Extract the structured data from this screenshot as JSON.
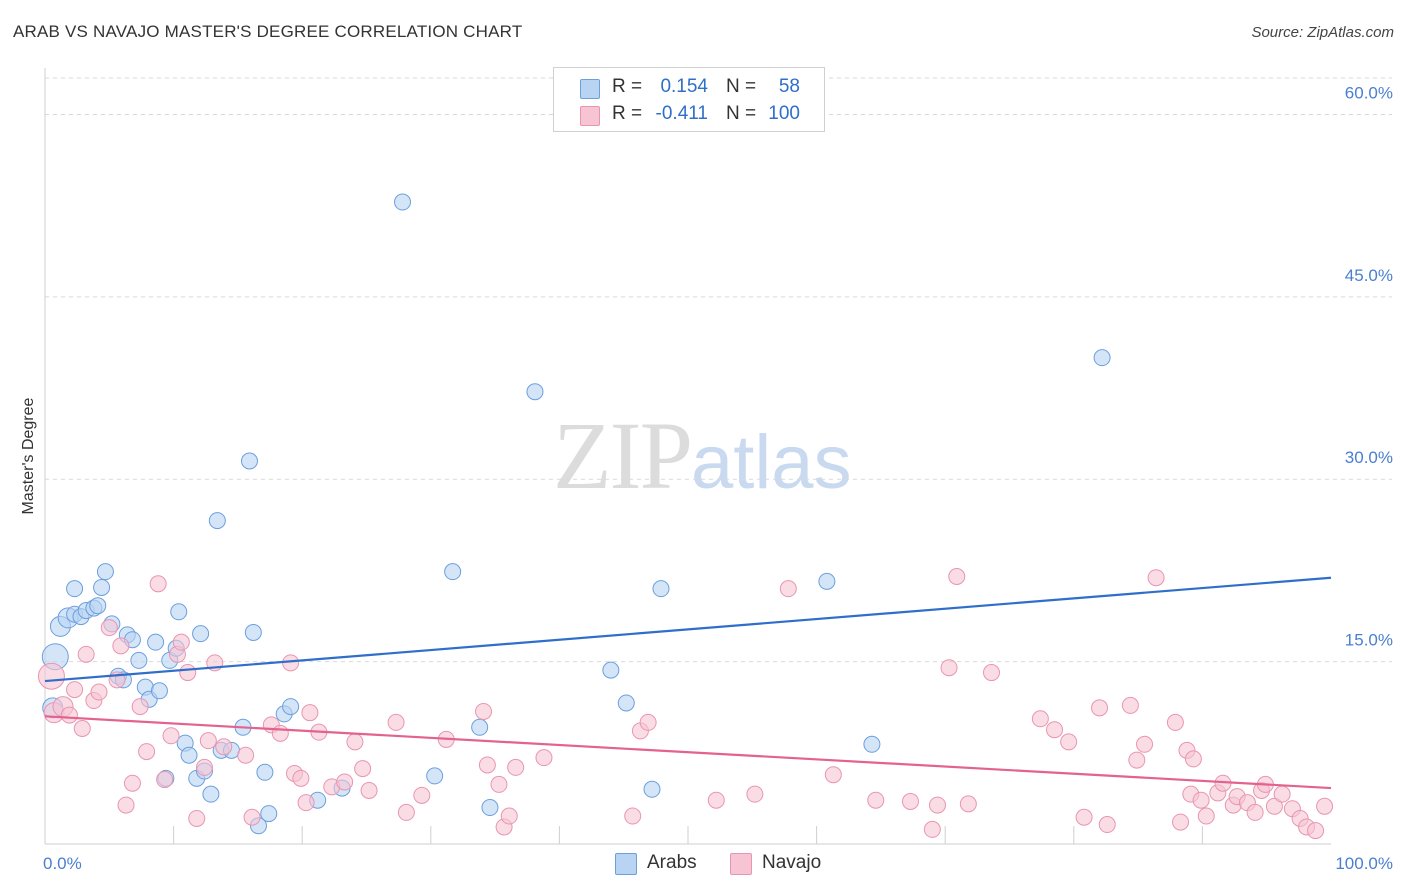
{
  "header": {
    "title": "ARAB VS NAVAJO MASTER'S DEGREE CORRELATION CHART",
    "source": "Source: ZipAtlas.com"
  },
  "watermark": {
    "zip": "ZIP",
    "atlas": "atlas"
  },
  "legend": {
    "arabs": {
      "r_label": "R =",
      "r_value": "0.154",
      "n_label": "N =",
      "n_value": "58"
    },
    "navajo": {
      "r_label": "R =",
      "r_value": "-0.411",
      "n_label": "N =",
      "n_value": "100"
    }
  },
  "bottom_legend": {
    "arabs": "Arabs",
    "navajo": "Navajo"
  },
  "colors": {
    "arabs_fill": "#b9d3f3",
    "arabs_stroke": "#6c9fde",
    "arabs_line": "#2f6fca",
    "navajo_fill": "#f7c4d4",
    "navajo_stroke": "#e995b2",
    "navajo_line": "#e3628e",
    "grid": "#d9d9d9",
    "tick_text": "#4a7fd0"
  },
  "chart_data": {
    "type": "scatter",
    "title": "ARAB VS NAVAJO MASTER'S DEGREE CORRELATION CHART",
    "xlabel": "",
    "ylabel": "Master's Degree",
    "xlim": [
      0,
      100
    ],
    "ylim": [
      0,
      63
    ],
    "x_tick_labels": [
      {
        "value": 0,
        "label": "0.0%"
      },
      {
        "value": 100,
        "label": "100.0%"
      }
    ],
    "y_ticks": [
      {
        "value": 15,
        "label": "15.0%"
      },
      {
        "value": 30,
        "label": "30.0%"
      },
      {
        "value": 45,
        "label": "45.0%"
      },
      {
        "value": 60,
        "label": "60.0%"
      }
    ],
    "grid": true,
    "series": [
      {
        "name": "Arabs",
        "r": 0.154,
        "n": 58,
        "trend": {
          "x": [
            0,
            100
          ],
          "y": [
            13.4,
            21.9
          ]
        },
        "points": [
          {
            "x": 0.8,
            "y": 15.4,
            "s": 3
          },
          {
            "x": 1.2,
            "y": 17.9,
            "s": 2
          },
          {
            "x": 1.8,
            "y": 18.6,
            "s": 2
          },
          {
            "x": 0.6,
            "y": 11.2,
            "s": 2
          },
          {
            "x": 2.3,
            "y": 18.9,
            "s": 1
          },
          {
            "x": 2.3,
            "y": 21.0,
            "s": 1
          },
          {
            "x": 2.8,
            "y": 18.7,
            "s": 1
          },
          {
            "x": 3.2,
            "y": 19.2,
            "s": 1
          },
          {
            "x": 3.8,
            "y": 19.4,
            "s": 1
          },
          {
            "x": 4.1,
            "y": 19.6,
            "s": 1
          },
          {
            "x": 4.4,
            "y": 21.1,
            "s": 1
          },
          {
            "x": 4.7,
            "y": 22.4,
            "s": 1
          },
          {
            "x": 5.2,
            "y": 18.1,
            "s": 1
          },
          {
            "x": 5.7,
            "y": 13.8,
            "s": 1
          },
          {
            "x": 6.1,
            "y": 13.5,
            "s": 1
          },
          {
            "x": 6.4,
            "y": 17.2,
            "s": 1
          },
          {
            "x": 6.8,
            "y": 16.8,
            "s": 1
          },
          {
            "x": 7.3,
            "y": 15.1,
            "s": 1
          },
          {
            "x": 7.8,
            "y": 12.9,
            "s": 1
          },
          {
            "x": 8.1,
            "y": 11.9,
            "s": 1
          },
          {
            "x": 8.6,
            "y": 16.6,
            "s": 1
          },
          {
            "x": 8.9,
            "y": 12.6,
            "s": 1
          },
          {
            "x": 9.4,
            "y": 5.4,
            "s": 1
          },
          {
            "x": 9.7,
            "y": 15.1,
            "s": 1
          },
          {
            "x": 10.2,
            "y": 16.1,
            "s": 1
          },
          {
            "x": 10.4,
            "y": 19.1,
            "s": 1
          },
          {
            "x": 10.9,
            "y": 8.3,
            "s": 1
          },
          {
            "x": 11.2,
            "y": 7.3,
            "s": 1
          },
          {
            "x": 11.8,
            "y": 5.4,
            "s": 1
          },
          {
            "x": 12.1,
            "y": 17.3,
            "s": 1
          },
          {
            "x": 12.4,
            "y": 6.0,
            "s": 1
          },
          {
            "x": 12.9,
            "y": 4.1,
            "s": 1
          },
          {
            "x": 13.4,
            "y": 26.6,
            "s": 1
          },
          {
            "x": 13.7,
            "y": 7.7,
            "s": 1
          },
          {
            "x": 14.5,
            "y": 7.7,
            "s": 1
          },
          {
            "x": 15.4,
            "y": 9.6,
            "s": 1
          },
          {
            "x": 15.9,
            "y": 31.5,
            "s": 1
          },
          {
            "x": 16.2,
            "y": 17.4,
            "s": 1
          },
          {
            "x": 16.6,
            "y": 1.5,
            "s": 1
          },
          {
            "x": 17.1,
            "y": 5.9,
            "s": 1
          },
          {
            "x": 17.4,
            "y": 2.5,
            "s": 1
          },
          {
            "x": 18.6,
            "y": 10.7,
            "s": 1
          },
          {
            "x": 19.1,
            "y": 11.3,
            "s": 1
          },
          {
            "x": 21.2,
            "y": 3.6,
            "s": 1
          },
          {
            "x": 23.1,
            "y": 4.6,
            "s": 1
          },
          {
            "x": 27.8,
            "y": 52.8,
            "s": 1
          },
          {
            "x": 30.3,
            "y": 5.6,
            "s": 1
          },
          {
            "x": 31.7,
            "y": 22.4,
            "s": 1
          },
          {
            "x": 33.8,
            "y": 9.6,
            "s": 1
          },
          {
            "x": 34.6,
            "y": 3.0,
            "s": 1
          },
          {
            "x": 38.1,
            "y": 37.2,
            "s": 1
          },
          {
            "x": 44.0,
            "y": 14.3,
            "s": 1
          },
          {
            "x": 45.2,
            "y": 11.6,
            "s": 1
          },
          {
            "x": 47.2,
            "y": 4.5,
            "s": 1
          },
          {
            "x": 47.9,
            "y": 21.0,
            "s": 1
          },
          {
            "x": 60.8,
            "y": 21.6,
            "s": 1
          },
          {
            "x": 64.3,
            "y": 8.2,
            "s": 1
          },
          {
            "x": 82.2,
            "y": 40.0,
            "s": 1
          }
        ]
      },
      {
        "name": "Navajo",
        "r": -0.411,
        "n": 100,
        "trend": {
          "x": [
            0,
            100
          ],
          "y": [
            10.5,
            4.6
          ]
        },
        "points": [
          {
            "x": 0.5,
            "y": 13.8,
            "s": 3
          },
          {
            "x": 0.7,
            "y": 10.8,
            "s": 2
          },
          {
            "x": 1.4,
            "y": 11.3,
            "s": 2
          },
          {
            "x": 1.9,
            "y": 10.6,
            "s": 1
          },
          {
            "x": 2.3,
            "y": 12.7,
            "s": 1
          },
          {
            "x": 2.9,
            "y": 9.5,
            "s": 1
          },
          {
            "x": 3.2,
            "y": 15.6,
            "s": 1
          },
          {
            "x": 3.8,
            "y": 11.8,
            "s": 1
          },
          {
            "x": 4.2,
            "y": 12.5,
            "s": 1
          },
          {
            "x": 5.0,
            "y": 17.8,
            "s": 1
          },
          {
            "x": 5.6,
            "y": 13.5,
            "s": 1
          },
          {
            "x": 5.9,
            "y": 16.3,
            "s": 1
          },
          {
            "x": 6.3,
            "y": 3.2,
            "s": 1
          },
          {
            "x": 6.8,
            "y": 5.0,
            "s": 1
          },
          {
            "x": 7.4,
            "y": 11.3,
            "s": 1
          },
          {
            "x": 7.9,
            "y": 7.6,
            "s": 1
          },
          {
            "x": 8.8,
            "y": 21.4,
            "s": 1
          },
          {
            "x": 9.3,
            "y": 5.3,
            "s": 1
          },
          {
            "x": 9.8,
            "y": 8.9,
            "s": 1
          },
          {
            "x": 10.3,
            "y": 15.6,
            "s": 1
          },
          {
            "x": 10.6,
            "y": 16.6,
            "s": 1
          },
          {
            "x": 11.1,
            "y": 14.1,
            "s": 1
          },
          {
            "x": 11.8,
            "y": 2.1,
            "s": 1
          },
          {
            "x": 12.4,
            "y": 6.3,
            "s": 1
          },
          {
            "x": 12.7,
            "y": 8.5,
            "s": 1
          },
          {
            "x": 13.2,
            "y": 14.9,
            "s": 1
          },
          {
            "x": 13.9,
            "y": 8.0,
            "s": 1
          },
          {
            "x": 15.6,
            "y": 7.3,
            "s": 1
          },
          {
            "x": 16.1,
            "y": 2.2,
            "s": 1
          },
          {
            "x": 17.6,
            "y": 9.8,
            "s": 1
          },
          {
            "x": 18.3,
            "y": 9.1,
            "s": 1
          },
          {
            "x": 19.1,
            "y": 14.9,
            "s": 1
          },
          {
            "x": 19.4,
            "y": 5.8,
            "s": 1
          },
          {
            "x": 19.9,
            "y": 5.4,
            "s": 1
          },
          {
            "x": 20.3,
            "y": 3.4,
            "s": 1
          },
          {
            "x": 20.6,
            "y": 10.8,
            "s": 1
          },
          {
            "x": 21.3,
            "y": 9.2,
            "s": 1
          },
          {
            "x": 22.3,
            "y": 4.7,
            "s": 1
          },
          {
            "x": 23.3,
            "y": 5.1,
            "s": 1
          },
          {
            "x": 24.1,
            "y": 8.4,
            "s": 1
          },
          {
            "x": 24.7,
            "y": 6.2,
            "s": 1
          },
          {
            "x": 25.2,
            "y": 4.4,
            "s": 1
          },
          {
            "x": 27.3,
            "y": 10.0,
            "s": 1
          },
          {
            "x": 28.1,
            "y": 2.6,
            "s": 1
          },
          {
            "x": 29.3,
            "y": 4.0,
            "s": 1
          },
          {
            "x": 31.2,
            "y": 8.6,
            "s": 1
          },
          {
            "x": 34.1,
            "y": 10.9,
            "s": 1
          },
          {
            "x": 34.4,
            "y": 6.5,
            "s": 1
          },
          {
            "x": 35.3,
            "y": 4.9,
            "s": 1
          },
          {
            "x": 35.7,
            "y": 1.4,
            "s": 1
          },
          {
            "x": 36.1,
            "y": 2.3,
            "s": 1
          },
          {
            "x": 36.6,
            "y": 6.3,
            "s": 1
          },
          {
            "x": 38.8,
            "y": 7.1,
            "s": 1
          },
          {
            "x": 45.7,
            "y": 2.3,
            "s": 1
          },
          {
            "x": 46.3,
            "y": 9.3,
            "s": 1
          },
          {
            "x": 46.9,
            "y": 10.0,
            "s": 1
          },
          {
            "x": 52.2,
            "y": 3.6,
            "s": 1
          },
          {
            "x": 55.2,
            "y": 4.1,
            "s": 1
          },
          {
            "x": 57.8,
            "y": 21.0,
            "s": 1
          },
          {
            "x": 61.3,
            "y": 5.7,
            "s": 1
          },
          {
            "x": 64.6,
            "y": 3.6,
            "s": 1
          },
          {
            "x": 67.3,
            "y": 3.5,
            "s": 1
          },
          {
            "x": 69.0,
            "y": 1.2,
            "s": 1
          },
          {
            "x": 69.4,
            "y": 3.2,
            "s": 1
          },
          {
            "x": 70.3,
            "y": 14.5,
            "s": 1
          },
          {
            "x": 70.9,
            "y": 22.0,
            "s": 1
          },
          {
            "x": 71.8,
            "y": 3.3,
            "s": 1
          },
          {
            "x": 73.6,
            "y": 14.1,
            "s": 1
          },
          {
            "x": 77.4,
            "y": 10.3,
            "s": 1
          },
          {
            "x": 78.5,
            "y": 9.4,
            "s": 1
          },
          {
            "x": 79.6,
            "y": 8.4,
            "s": 1
          },
          {
            "x": 80.8,
            "y": 2.2,
            "s": 1
          },
          {
            "x": 82.0,
            "y": 11.2,
            "s": 1
          },
          {
            "x": 82.6,
            "y": 1.6,
            "s": 1
          },
          {
            "x": 84.4,
            "y": 11.4,
            "s": 1
          },
          {
            "x": 84.9,
            "y": 6.9,
            "s": 1
          },
          {
            "x": 85.5,
            "y": 8.2,
            "s": 1
          },
          {
            "x": 86.4,
            "y": 21.9,
            "s": 1
          },
          {
            "x": 87.9,
            "y": 10.0,
            "s": 1
          },
          {
            "x": 88.3,
            "y": 1.8,
            "s": 1
          },
          {
            "x": 88.8,
            "y": 7.7,
            "s": 1
          },
          {
            "x": 89.1,
            "y": 4.1,
            "s": 1
          },
          {
            "x": 89.3,
            "y": 7.0,
            "s": 1
          },
          {
            "x": 89.9,
            "y": 3.6,
            "s": 1
          },
          {
            "x": 90.3,
            "y": 2.3,
            "s": 1
          },
          {
            "x": 91.2,
            "y": 4.2,
            "s": 1
          },
          {
            "x": 91.6,
            "y": 5.0,
            "s": 1
          },
          {
            "x": 92.4,
            "y": 3.2,
            "s": 1
          },
          {
            "x": 92.7,
            "y": 3.9,
            "s": 1
          },
          {
            "x": 93.5,
            "y": 3.4,
            "s": 1
          },
          {
            "x": 94.1,
            "y": 2.6,
            "s": 1
          },
          {
            "x": 94.6,
            "y": 4.4,
            "s": 1
          },
          {
            "x": 94.9,
            "y": 4.9,
            "s": 1
          },
          {
            "x": 95.6,
            "y": 3.1,
            "s": 1
          },
          {
            "x": 96.2,
            "y": 4.1,
            "s": 1
          },
          {
            "x": 97.0,
            "y": 2.9,
            "s": 1
          },
          {
            "x": 97.6,
            "y": 2.1,
            "s": 1
          },
          {
            "x": 98.1,
            "y": 1.4,
            "s": 1
          },
          {
            "x": 98.8,
            "y": 1.1,
            "s": 1
          },
          {
            "x": 99.5,
            "y": 3.1,
            "s": 1
          }
        ]
      }
    ]
  }
}
